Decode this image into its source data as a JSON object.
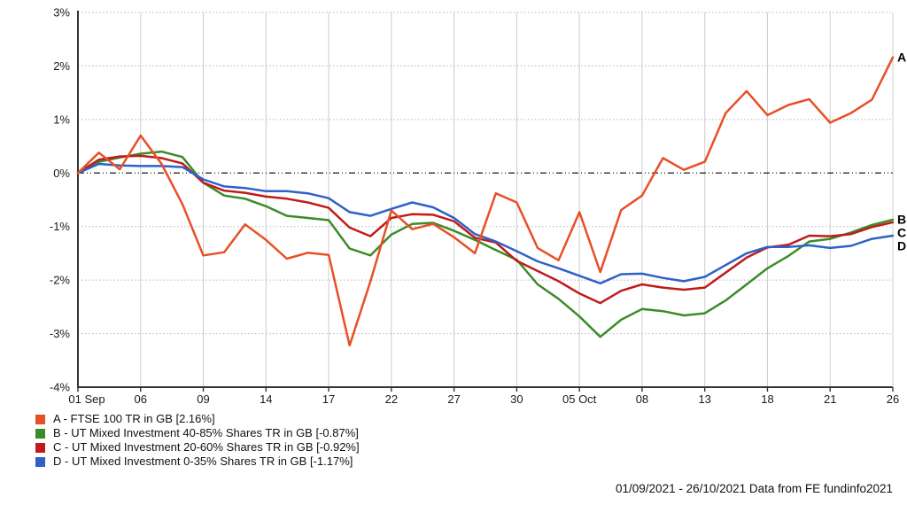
{
  "chart_data": {
    "type": "line",
    "title": "",
    "xlabel": "",
    "ylabel": "",
    "ylim": [
      -4,
      3
    ],
    "y_tick_labels": [
      "3%",
      "2%",
      "1%",
      "0%",
      "-1%",
      "-2%",
      "-3%",
      "-4%"
    ],
    "y_tick_values": [
      3,
      2,
      1,
      0,
      -1,
      -2,
      -3,
      -4
    ],
    "zero_line": true,
    "grid": true,
    "legend_position": "bottom-left",
    "x_dates": [
      "01 Sep",
      "02 Sep",
      "03 Sep",
      "06 Sep",
      "07 Sep",
      "08 Sep",
      "09 Sep",
      "10 Sep",
      "13 Sep",
      "14 Sep",
      "15 Sep",
      "16 Sep",
      "17 Sep",
      "20 Sep",
      "21 Sep",
      "22 Sep",
      "23 Sep",
      "24 Sep",
      "27 Sep",
      "28 Sep",
      "29 Sep",
      "30 Sep",
      "01 Oct",
      "04 Oct",
      "05 Oct",
      "06 Oct",
      "07 Oct",
      "08 Oct",
      "11 Oct",
      "12 Oct",
      "13 Oct",
      "14 Oct",
      "15 Oct",
      "18 Oct",
      "19 Oct",
      "20 Oct",
      "21 Oct",
      "22 Oct",
      "25 Oct",
      "26 Oct"
    ],
    "x_tick_indices": [
      0,
      3,
      6,
      9,
      12,
      15,
      18,
      21,
      24,
      27,
      30,
      33,
      36,
      39
    ],
    "x_tick_labels": [
      "01 Sep",
      "06",
      "09",
      "14",
      "17",
      "22",
      "27",
      "30",
      "05 Oct",
      "08",
      "13",
      "18",
      "21",
      "26"
    ],
    "series": [
      {
        "id": "A",
        "name": "FTSE 100 TR in GB",
        "final_return": "2.16%",
        "color": "#e84f28",
        "values": [
          0.0,
          0.38,
          0.07,
          0.7,
          0.17,
          -0.58,
          -1.54,
          -1.48,
          -0.96,
          -1.25,
          -1.6,
          -1.49,
          -1.53,
          -3.22,
          -2.02,
          -0.7,
          -1.05,
          -0.95,
          -1.2,
          -1.5,
          -0.38,
          -0.55,
          -1.4,
          -1.63,
          -0.73,
          -1.85,
          -0.69,
          -0.42,
          0.28,
          0.06,
          0.21,
          1.12,
          1.53,
          1.08,
          1.27,
          1.38,
          0.94,
          1.12,
          1.37,
          2.16
        ]
      },
      {
        "id": "B",
        "name": "UT Mixed Investment 40-85% Shares TR in GB",
        "final_return": "-0.87%",
        "color": "#3c8b28",
        "values": [
          0.0,
          0.21,
          0.29,
          0.36,
          0.4,
          0.3,
          -0.18,
          -0.42,
          -0.48,
          -0.62,
          -0.8,
          -0.84,
          -0.88,
          -1.41,
          -1.54,
          -1.15,
          -0.95,
          -0.93,
          -1.08,
          -1.25,
          -1.44,
          -1.62,
          -2.08,
          -2.35,
          -2.68,
          -3.06,
          -2.74,
          -2.54,
          -2.58,
          -2.66,
          -2.62,
          -2.38,
          -2.08,
          -1.78,
          -1.55,
          -1.28,
          -1.23,
          -1.11,
          -0.97,
          -0.87
        ]
      },
      {
        "id": "C",
        "name": "UT Mixed Investment 20-60% Shares TR in GB",
        "final_return": "-0.92%",
        "color": "#c01b1b",
        "values": [
          0.0,
          0.25,
          0.31,
          0.32,
          0.28,
          0.18,
          -0.18,
          -0.33,
          -0.37,
          -0.44,
          -0.48,
          -0.55,
          -0.65,
          -1.02,
          -1.18,
          -0.84,
          -0.77,
          -0.78,
          -0.9,
          -1.21,
          -1.3,
          -1.64,
          -1.83,
          -2.02,
          -2.25,
          -2.43,
          -2.2,
          -2.08,
          -2.14,
          -2.18,
          -2.14,
          -1.86,
          -1.58,
          -1.39,
          -1.34,
          -1.17,
          -1.18,
          -1.14,
          -1.01,
          -0.92
        ]
      },
      {
        "id": "D",
        "name": "UT Mixed Investment 0-35% Shares TR in GB",
        "final_return": "-1.17%",
        "color": "#2f61c6",
        "values": [
          0.0,
          0.17,
          0.14,
          0.13,
          0.13,
          0.11,
          -0.12,
          -0.25,
          -0.28,
          -0.34,
          -0.34,
          -0.38,
          -0.47,
          -0.73,
          -0.8,
          -0.67,
          -0.55,
          -0.64,
          -0.84,
          -1.14,
          -1.28,
          -1.46,
          -1.65,
          -1.78,
          -1.92,
          -2.06,
          -1.89,
          -1.88,
          -1.96,
          -2.02,
          -1.94,
          -1.72,
          -1.5,
          -1.38,
          -1.38,
          -1.35,
          -1.4,
          -1.36,
          -1.23,
          -1.17
        ]
      }
    ]
  },
  "legend": {
    "items": [
      {
        "label": "A - FTSE 100 TR in GB [2.16%]"
      },
      {
        "label": "B - UT Mixed Investment 40-85% Shares TR in GB [-0.87%]"
      },
      {
        "label": "C - UT Mixed Investment 20-60% Shares TR in GB [-0.92%]"
      },
      {
        "label": "D - UT Mixed Investment 0-35% Shares TR in GB [-1.17%]"
      }
    ]
  },
  "footer": {
    "text": "01/09/2021 - 26/10/2021 Data from FE fundinfo2021"
  }
}
